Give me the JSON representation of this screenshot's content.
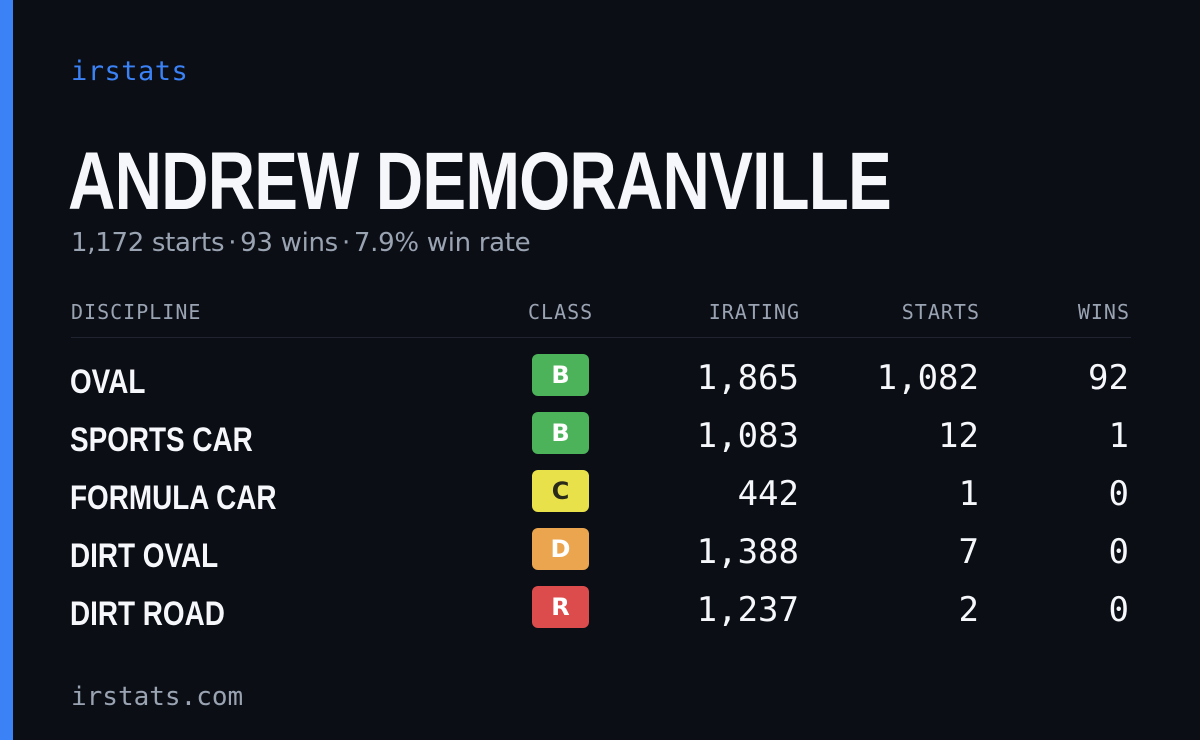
{
  "brand": "irstats",
  "driver": {
    "name": "ANDREW DEMORANVILLE",
    "starts_text": "1,172 starts",
    "wins_text": "93 wins",
    "win_rate_text": "7.9% win rate",
    "separator": "·"
  },
  "table": {
    "headers": {
      "discipline": "DISCIPLINE",
      "class": "CLASS",
      "irating": "IRATING",
      "starts": "STARTS",
      "wins": "WINS"
    },
    "rows": [
      {
        "discipline": "OVAL",
        "class": "B",
        "class_color": "#4cb35a",
        "class_text_color": "#ffffff",
        "irating": "1,865",
        "starts": "1,082",
        "wins": "92"
      },
      {
        "discipline": "SPORTS CAR",
        "class": "B",
        "class_color": "#4cb35a",
        "class_text_color": "#ffffff",
        "irating": "1,083",
        "starts": "12",
        "wins": "1"
      },
      {
        "discipline": "FORMULA CAR",
        "class": "C",
        "class_color": "#e9e14a",
        "class_text_color": "#2a2a1a",
        "irating": "442",
        "starts": "1",
        "wins": "0"
      },
      {
        "discipline": "DIRT OVAL",
        "class": "D",
        "class_color": "#eaa54e",
        "class_text_color": "#ffffff",
        "irating": "1,388",
        "starts": "7",
        "wins": "0"
      },
      {
        "discipline": "DIRT ROAD",
        "class": "R",
        "class_color": "#dc4c4c",
        "class_text_color": "#ffffff",
        "irating": "1,237",
        "starts": "2",
        "wins": "0"
      }
    ]
  },
  "footer": "irstats.com",
  "colors": {
    "background": "#0b0e15",
    "accent": "#3b82f6",
    "muted_text": "#9aa3b2",
    "primary_text": "#f5f7fb"
  }
}
